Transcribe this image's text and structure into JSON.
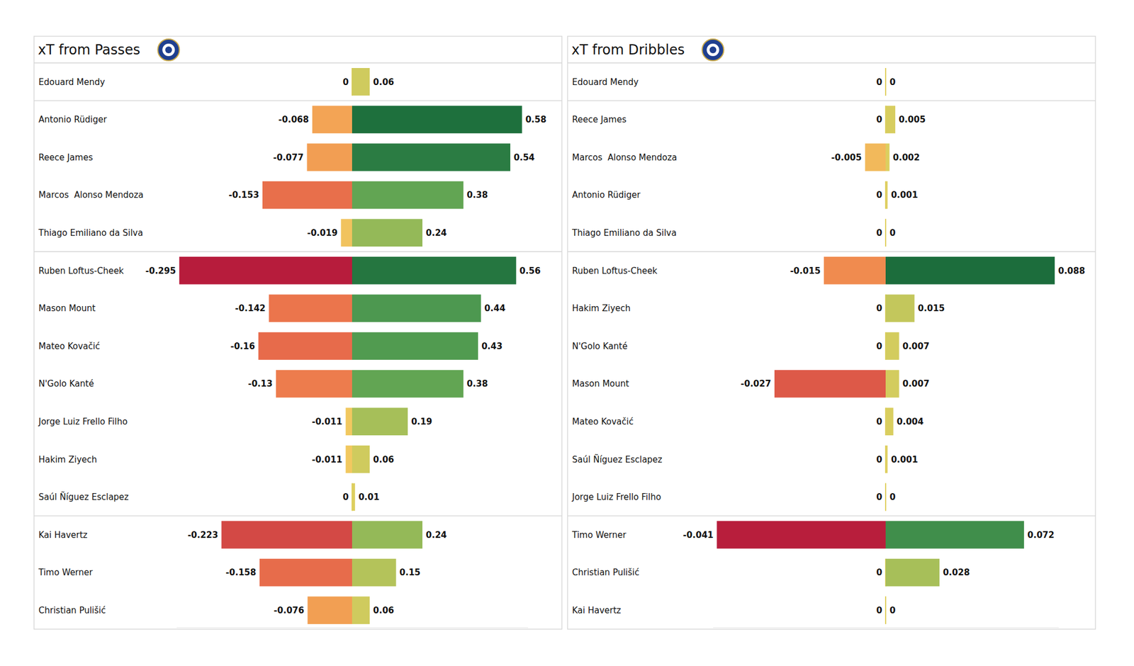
{
  "chart_data": [
    {
      "type": "bar",
      "orientation": "horizontal",
      "title": "xT from Passes",
      "data_labels": true,
      "tick_labels": false,
      "categories": [
        "Edouard Mendy",
        "Antonio Rüdiger",
        "Reece James",
        "Marcos  Alonso Mendoza",
        "Thiago Emiliano da Silva",
        "Ruben Loftus-Cheek",
        "Mason Mount",
        "Mateo Kovačić",
        "N'Golo Kanté",
        "Jorge Luiz Frello Filho",
        "Hakim Ziyech",
        "Saúl Ñíguez Esclapez",
        "Kai Havertz",
        "Timo Werner",
        "Christian Pulišić"
      ],
      "series": [
        {
          "values": [
            0,
            -0.068,
            -0.077,
            -0.153,
            -0.019,
            -0.295,
            -0.142,
            -0.16,
            -0.13,
            -0.011,
            -0.011,
            0,
            -0.223,
            -0.158,
            -0.076
          ]
        },
        {
          "values": [
            0.06,
            0.58,
            0.54,
            0.38,
            0.24,
            0.56,
            0.44,
            0.43,
            0.38,
            0.19,
            0.06,
            0.01,
            0.24,
            0.15,
            0.06
          ]
        }
      ],
      "xlim": [
        -0.3,
        0.6
      ]
    },
    {
      "type": "bar",
      "orientation": "horizontal",
      "title": "xT from Dribbles",
      "data_labels": true,
      "tick_labels": false,
      "categories": [
        "Edouard Mendy",
        "Reece James",
        "Marcos  Alonso Mendoza",
        "Antonio Rüdiger",
        "Thiago Emiliano da Silva",
        "Ruben Loftus-Cheek",
        "Hakim Ziyech",
        "N'Golo Kanté",
        "Mason Mount",
        "Mateo Kovačić",
        "Saúl Ñíguez Esclapez",
        "Jorge Luiz Frello Filho",
        "Timo Werner",
        "Christian Pulišić",
        "Kai Havertz"
      ],
      "series": [
        {
          "values": [
            0,
            0,
            -0.005,
            0,
            0,
            -0.015,
            0,
            0,
            -0.027,
            0,
            0,
            0,
            -0.041,
            0,
            0
          ]
        },
        {
          "values": [
            0,
            0.005,
            0.002,
            0.001,
            0,
            0.088,
            0.015,
            0.007,
            0.007,
            0.004,
            0.001,
            0,
            0.072,
            0.028,
            0
          ]
        }
      ],
      "xlim": [
        -0.042,
        0.09
      ]
    }
  ]
}
